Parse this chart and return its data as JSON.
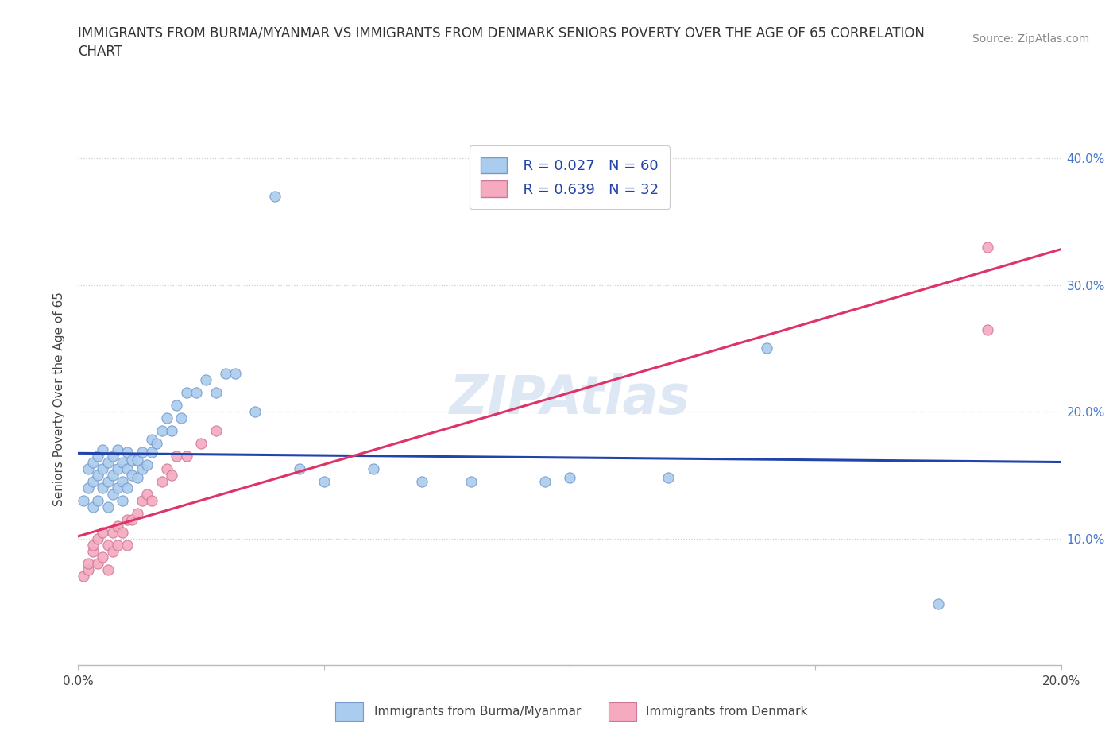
{
  "title_line1": "IMMIGRANTS FROM BURMA/MYANMAR VS IMMIGRANTS FROM DENMARK SENIORS POVERTY OVER THE AGE OF 65 CORRELATION",
  "title_line2": "CHART",
  "source": "Source: ZipAtlas.com",
  "ylabel": "Seniors Poverty Over the Age of 65",
  "xlim": [
    0.0,
    0.2
  ],
  "ylim": [
    0.0,
    0.42
  ],
  "burma_color": "#aaccee",
  "burma_edge": "#7799cc",
  "denmark_color": "#f5aabf",
  "denmark_edge": "#cc7799",
  "burma_line_color": "#2244aa",
  "denmark_line_color": "#dd3366",
  "legend_R_burma": "R = 0.027",
  "legend_N_burma": "N = 60",
  "legend_R_denmark": "R = 0.639",
  "legend_N_denmark": "N = 32",
  "watermark": "ZIPAtlas",
  "burma_x": [
    0.001,
    0.002,
    0.002,
    0.003,
    0.003,
    0.003,
    0.004,
    0.004,
    0.004,
    0.005,
    0.005,
    0.005,
    0.006,
    0.006,
    0.006,
    0.007,
    0.007,
    0.007,
    0.008,
    0.008,
    0.008,
    0.009,
    0.009,
    0.009,
    0.01,
    0.01,
    0.01,
    0.011,
    0.011,
    0.012,
    0.012,
    0.013,
    0.013,
    0.014,
    0.015,
    0.015,
    0.016,
    0.017,
    0.018,
    0.019,
    0.02,
    0.021,
    0.022,
    0.024,
    0.026,
    0.028,
    0.03,
    0.032,
    0.036,
    0.04,
    0.045,
    0.05,
    0.06,
    0.07,
    0.08,
    0.095,
    0.1,
    0.12,
    0.14,
    0.175
  ],
  "burma_y": [
    0.13,
    0.14,
    0.155,
    0.125,
    0.145,
    0.16,
    0.13,
    0.15,
    0.165,
    0.14,
    0.155,
    0.17,
    0.125,
    0.145,
    0.16,
    0.135,
    0.15,
    0.165,
    0.14,
    0.155,
    0.17,
    0.13,
    0.145,
    0.16,
    0.14,
    0.155,
    0.168,
    0.15,
    0.162,
    0.148,
    0.162,
    0.155,
    0.168,
    0.158,
    0.168,
    0.178,
    0.175,
    0.185,
    0.195,
    0.185,
    0.205,
    0.195,
    0.215,
    0.215,
    0.225,
    0.215,
    0.23,
    0.23,
    0.2,
    0.37,
    0.155,
    0.145,
    0.155,
    0.145,
    0.145,
    0.145,
    0.148,
    0.148,
    0.25,
    0.048
  ],
  "denmark_x": [
    0.001,
    0.002,
    0.002,
    0.003,
    0.003,
    0.004,
    0.004,
    0.005,
    0.005,
    0.006,
    0.006,
    0.007,
    0.007,
    0.008,
    0.008,
    0.009,
    0.01,
    0.01,
    0.011,
    0.012,
    0.013,
    0.014,
    0.015,
    0.017,
    0.018,
    0.019,
    0.02,
    0.022,
    0.025,
    0.028,
    0.185,
    0.185
  ],
  "denmark_y": [
    0.07,
    0.075,
    0.08,
    0.09,
    0.095,
    0.08,
    0.1,
    0.085,
    0.105,
    0.075,
    0.095,
    0.09,
    0.105,
    0.095,
    0.11,
    0.105,
    0.095,
    0.115,
    0.115,
    0.12,
    0.13,
    0.135,
    0.13,
    0.145,
    0.155,
    0.15,
    0.165,
    0.165,
    0.175,
    0.185,
    0.265,
    0.33
  ]
}
